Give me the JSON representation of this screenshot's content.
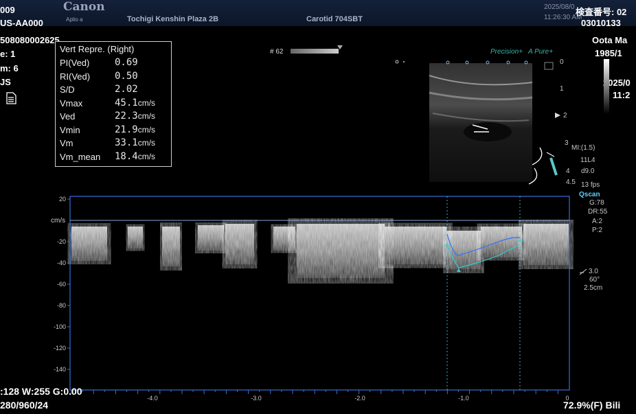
{
  "header": {
    "brand": "Canon",
    "model": "Aplio a",
    "institution": "Tochigi Kenshin Plaza 2B",
    "preset": "Carotid 704SBT",
    "date": "2025/08/0",
    "time": "11:26:30 AM",
    "exam_no_label": "検査番号: 02",
    "exam_no": "03010133",
    "patient_name": "Oota Ma",
    "birth": "1985/1",
    "date_right": "2025/0",
    "time_right": "11:2"
  },
  "left_info": {
    "line1": "009",
    "line2": "US-AA000",
    "line3": "508080002625",
    "line4": "e: 1",
    "line5": "m: 6",
    "line6": "JS"
  },
  "measurements": {
    "title": "Vert Repre. (Right)",
    "rows": [
      {
        "label": "PI(Ved)",
        "value": "0.69",
        "unit": ""
      },
      {
        "label": "RI(Ved)",
        "value": "0.50",
        "unit": ""
      },
      {
        "label": "S/D",
        "value": "2.02",
        "unit": ""
      },
      {
        "label": "Vmax",
        "value": "45.1",
        "unit": "cm/s"
      },
      {
        "label": "Ved",
        "value": "22.3",
        "unit": "cm/s"
      },
      {
        "label": "Vmin",
        "value": "21.9",
        "unit": "cm/s"
      },
      {
        "label": "Vm",
        "value": "33.1",
        "unit": "cm/s"
      },
      {
        "label": "Vm_mean",
        "value": "18.4",
        "unit": "cm/s"
      }
    ]
  },
  "frame": "# 62",
  "precision": "Precision+",
  "apure": "A Pure+",
  "depth_marks": [
    "0",
    "1",
    "2",
    "3",
    "4"
  ],
  "probe": {
    "mi": "MI:(1.5)",
    "probe": "11L4",
    "depth": "d9.0",
    "depth_tail": "4.5",
    "fps": "13 fps"
  },
  "doppler_settings": {
    "mode": "Qscan",
    "g": "G:78",
    "dr": "DR:55",
    "a": "A:2",
    "p": "P:2",
    "angle_val": "3.0",
    "angle": "60°",
    "gate": "2.5cm"
  },
  "spectrum": {
    "unit_label": "cm/s",
    "y_ticks": [
      "20",
      "-20",
      "-40",
      "-60",
      "-80",
      "-100",
      "-120",
      "-140"
    ],
    "x_ticks": [
      "-4.0",
      "-3.0",
      "-2.0",
      "-1.0",
      "0"
    ]
  },
  "footer": {
    "wl": ":128 W:255 G:0.00",
    "res": "280/960/24",
    "right": "72.9%(F) Bili"
  },
  "colors": {
    "axis_blue": "#3a6fd8",
    "trace_cyan": "#2fd0d0",
    "trace_blue": "#2f6fff"
  }
}
